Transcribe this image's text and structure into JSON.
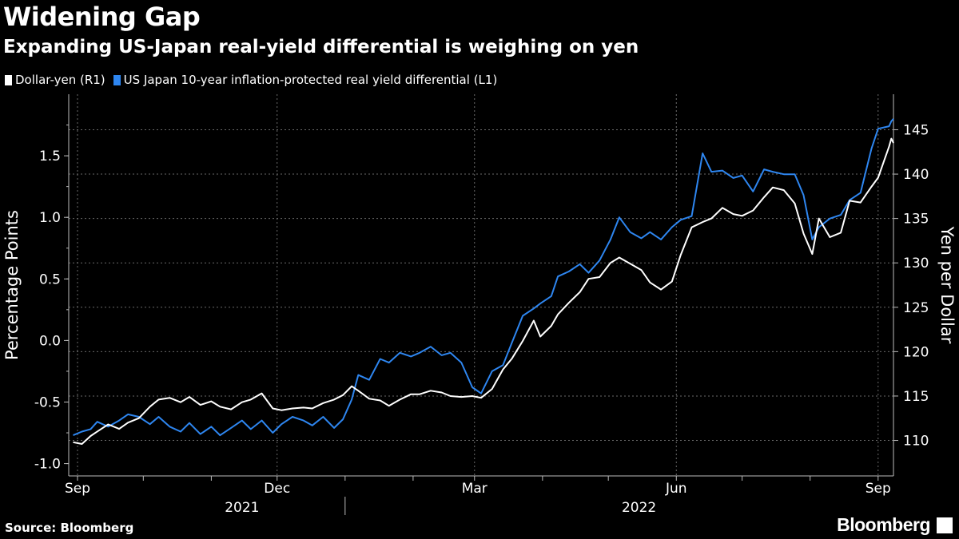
{
  "title": "Widening Gap",
  "subtitle": "Expanding US-Japan real-yield differential is weighing on yen",
  "source": "Source: Bloomberg",
  "brand": "Bloomberg",
  "colors": {
    "background": "#000000",
    "usdjpy": "#ffffff",
    "differential": "#2e86f0",
    "grid": "#6a6a6a"
  },
  "chart_data": {
    "type": "line",
    "legend": [
      {
        "name": "Dollar-yen (R1)",
        "color": "#ffffff"
      },
      {
        "name": "US Japan 10-year inflation-protected real yield differential (L1)",
        "color": "#2e86f0"
      }
    ],
    "x_axis": {
      "range": [
        "2021-08-28",
        "2022-09-08"
      ],
      "ticks": [
        {
          "label": "Sep",
          "date": "2021-09-01"
        },
        {
          "label": "Dec",
          "date": "2021-12-01"
        },
        {
          "label": "Mar",
          "date": "2022-03-01"
        },
        {
          "label": "Jun",
          "date": "2022-06-01"
        },
        {
          "label": "Sep",
          "date": "2022-09-01"
        }
      ],
      "years": [
        {
          "label": "2021",
          "date": "2021-11-15"
        },
        {
          "label": "2022",
          "date": "2022-05-15"
        }
      ]
    },
    "y_left": {
      "label": "Percentage Points",
      "range": [
        -1.1,
        2.0
      ],
      "ticks": [
        -1.0,
        -0.5,
        0.0,
        0.5,
        1.0,
        1.5
      ],
      "tick_labels": [
        "-1.0",
        "-0.5",
        "0.0",
        "0.5",
        "1.0",
        "1.5"
      ]
    },
    "y_right": {
      "label": "Yen per Dollar",
      "range": [
        106,
        149
      ],
      "ticks": [
        110,
        115,
        120,
        125,
        130,
        135,
        140,
        145
      ],
      "tick_labels": [
        "110",
        "115",
        "120",
        "125",
        "130",
        "135",
        "140",
        "145"
      ]
    },
    "series": [
      {
        "name": "Dollar-yen (R1)",
        "axis": "right",
        "color": "#ffffff",
        "points": [
          [
            "2021-08-30",
            109.8
          ],
          [
            "2021-09-03",
            109.6
          ],
          [
            "2021-09-07",
            110.5
          ],
          [
            "2021-09-10",
            111.0
          ],
          [
            "2021-09-15",
            111.8
          ],
          [
            "2021-09-20",
            111.3
          ],
          [
            "2021-09-24",
            112.0
          ],
          [
            "2021-09-29",
            112.5
          ],
          [
            "2021-10-04",
            113.8
          ],
          [
            "2021-10-08",
            114.6
          ],
          [
            "2021-10-13",
            114.8
          ],
          [
            "2021-10-18",
            114.3
          ],
          [
            "2021-10-22",
            114.9
          ],
          [
            "2021-10-27",
            114.0
          ],
          [
            "2021-11-01",
            114.4
          ],
          [
            "2021-11-05",
            113.8
          ],
          [
            "2021-11-10",
            113.5
          ],
          [
            "2021-11-15",
            114.3
          ],
          [
            "2021-11-19",
            114.6
          ],
          [
            "2021-11-24",
            115.3
          ],
          [
            "2021-11-29",
            113.6
          ],
          [
            "2021-12-03",
            113.4
          ],
          [
            "2021-12-08",
            113.6
          ],
          [
            "2021-12-13",
            113.7
          ],
          [
            "2021-12-17",
            113.6
          ],
          [
            "2021-12-22",
            114.2
          ],
          [
            "2021-12-27",
            114.6
          ],
          [
            "2021-12-31",
            115.1
          ],
          [
            "2022-01-04",
            116.1
          ],
          [
            "2022-01-07",
            115.6
          ],
          [
            "2022-01-12",
            114.7
          ],
          [
            "2022-01-17",
            114.5
          ],
          [
            "2022-01-21",
            113.9
          ],
          [
            "2022-01-26",
            114.6
          ],
          [
            "2022-01-31",
            115.2
          ],
          [
            "2022-02-04",
            115.2
          ],
          [
            "2022-02-09",
            115.6
          ],
          [
            "2022-02-14",
            115.4
          ],
          [
            "2022-02-18",
            115.0
          ],
          [
            "2022-02-23",
            114.9
          ],
          [
            "2022-02-28",
            115.0
          ],
          [
            "2022-03-04",
            114.8
          ],
          [
            "2022-03-09",
            115.8
          ],
          [
            "2022-03-14",
            118.0
          ],
          [
            "2022-03-18",
            119.2
          ],
          [
            "2022-03-23",
            121.2
          ],
          [
            "2022-03-28",
            123.5
          ],
          [
            "2022-03-31",
            121.7
          ],
          [
            "2022-04-05",
            122.9
          ],
          [
            "2022-04-08",
            124.2
          ],
          [
            "2022-04-13",
            125.5
          ],
          [
            "2022-04-18",
            126.7
          ],
          [
            "2022-04-22",
            128.2
          ],
          [
            "2022-04-27",
            128.4
          ],
          [
            "2022-05-02",
            130.0
          ],
          [
            "2022-05-06",
            130.6
          ],
          [
            "2022-05-11",
            129.9
          ],
          [
            "2022-05-16",
            129.2
          ],
          [
            "2022-05-20",
            127.8
          ],
          [
            "2022-05-25",
            127.0
          ],
          [
            "2022-05-30",
            127.9
          ],
          [
            "2022-06-03",
            130.9
          ],
          [
            "2022-06-08",
            134.0
          ],
          [
            "2022-06-13",
            134.6
          ],
          [
            "2022-06-17",
            135.0
          ],
          [
            "2022-06-22",
            136.2
          ],
          [
            "2022-06-27",
            135.5
          ],
          [
            "2022-07-01",
            135.3
          ],
          [
            "2022-07-06",
            135.9
          ],
          [
            "2022-07-11",
            137.4
          ],
          [
            "2022-07-15",
            138.5
          ],
          [
            "2022-07-20",
            138.2
          ],
          [
            "2022-07-25",
            136.7
          ],
          [
            "2022-07-29",
            133.3
          ],
          [
            "2022-08-02",
            131.0
          ],
          [
            "2022-08-05",
            135.0
          ],
          [
            "2022-08-10",
            132.9
          ],
          [
            "2022-08-15",
            133.4
          ],
          [
            "2022-08-19",
            137.0
          ],
          [
            "2022-08-24",
            136.8
          ],
          [
            "2022-08-29",
            138.6
          ],
          [
            "2022-09-01",
            139.6
          ],
          [
            "2022-09-06",
            143.1
          ],
          [
            "2022-09-07",
            144.0
          ],
          [
            "2022-09-08",
            143.5
          ]
        ]
      },
      {
        "name": "US Japan 10-year inflation-protected real yield differential (L1)",
        "axis": "left",
        "color": "#2e86f0",
        "points": [
          [
            "2021-08-30",
            -0.77
          ],
          [
            "2021-09-03",
            -0.74
          ],
          [
            "2021-09-07",
            -0.72
          ],
          [
            "2021-09-10",
            -0.66
          ],
          [
            "2021-09-15",
            -0.7
          ],
          [
            "2021-09-20",
            -0.65
          ],
          [
            "2021-09-24",
            -0.6
          ],
          [
            "2021-09-29",
            -0.62
          ],
          [
            "2021-10-04",
            -0.68
          ],
          [
            "2021-10-08",
            -0.62
          ],
          [
            "2021-10-13",
            -0.7
          ],
          [
            "2021-10-18",
            -0.74
          ],
          [
            "2021-10-22",
            -0.67
          ],
          [
            "2021-10-27",
            -0.76
          ],
          [
            "2021-11-01",
            -0.7
          ],
          [
            "2021-11-05",
            -0.77
          ],
          [
            "2021-11-10",
            -0.71
          ],
          [
            "2021-11-15",
            -0.65
          ],
          [
            "2021-11-19",
            -0.72
          ],
          [
            "2021-11-24",
            -0.65
          ],
          [
            "2021-11-29",
            -0.75
          ],
          [
            "2021-12-03",
            -0.68
          ],
          [
            "2021-12-08",
            -0.62
          ],
          [
            "2021-12-13",
            -0.65
          ],
          [
            "2021-12-17",
            -0.69
          ],
          [
            "2021-12-22",
            -0.62
          ],
          [
            "2021-12-27",
            -0.71
          ],
          [
            "2021-12-31",
            -0.64
          ],
          [
            "2022-01-04",
            -0.48
          ],
          [
            "2022-01-07",
            -0.28
          ],
          [
            "2022-01-12",
            -0.32
          ],
          [
            "2022-01-17",
            -0.15
          ],
          [
            "2022-01-21",
            -0.18
          ],
          [
            "2022-01-26",
            -0.1
          ],
          [
            "2022-01-31",
            -0.13
          ],
          [
            "2022-02-04",
            -0.1
          ],
          [
            "2022-02-09",
            -0.05
          ],
          [
            "2022-02-14",
            -0.12
          ],
          [
            "2022-02-18",
            -0.1
          ],
          [
            "2022-02-23",
            -0.18
          ],
          [
            "2022-02-28",
            -0.38
          ],
          [
            "2022-03-04",
            -0.43
          ],
          [
            "2022-03-09",
            -0.25
          ],
          [
            "2022-03-14",
            -0.2
          ],
          [
            "2022-03-18",
            -0.02
          ],
          [
            "2022-03-23",
            0.2
          ],
          [
            "2022-03-28",
            0.26
          ],
          [
            "2022-03-31",
            0.3
          ],
          [
            "2022-04-05",
            0.36
          ],
          [
            "2022-04-08",
            0.52
          ],
          [
            "2022-04-13",
            0.56
          ],
          [
            "2022-04-18",
            0.62
          ],
          [
            "2022-04-22",
            0.55
          ],
          [
            "2022-04-27",
            0.65
          ],
          [
            "2022-05-02",
            0.82
          ],
          [
            "2022-05-06",
            1.0
          ],
          [
            "2022-05-11",
            0.88
          ],
          [
            "2022-05-16",
            0.83
          ],
          [
            "2022-05-20",
            0.88
          ],
          [
            "2022-05-25",
            0.82
          ],
          [
            "2022-05-30",
            0.92
          ],
          [
            "2022-06-03",
            0.98
          ],
          [
            "2022-06-08",
            1.01
          ],
          [
            "2022-06-13",
            1.52
          ],
          [
            "2022-06-17",
            1.37
          ],
          [
            "2022-06-22",
            1.38
          ],
          [
            "2022-06-27",
            1.32
          ],
          [
            "2022-07-01",
            1.34
          ],
          [
            "2022-07-06",
            1.21
          ],
          [
            "2022-07-11",
            1.39
          ],
          [
            "2022-07-15",
            1.37
          ],
          [
            "2022-07-20",
            1.35
          ],
          [
            "2022-07-25",
            1.35
          ],
          [
            "2022-07-29",
            1.18
          ],
          [
            "2022-08-02",
            0.82
          ],
          [
            "2022-08-05",
            0.92
          ],
          [
            "2022-08-10",
            0.99
          ],
          [
            "2022-08-15",
            1.02
          ],
          [
            "2022-08-19",
            1.14
          ],
          [
            "2022-08-24",
            1.2
          ],
          [
            "2022-08-29",
            1.56
          ],
          [
            "2022-09-01",
            1.72
          ],
          [
            "2022-09-06",
            1.74
          ],
          [
            "2022-09-07",
            1.78
          ],
          [
            "2022-09-08",
            1.8
          ]
        ]
      }
    ]
  }
}
